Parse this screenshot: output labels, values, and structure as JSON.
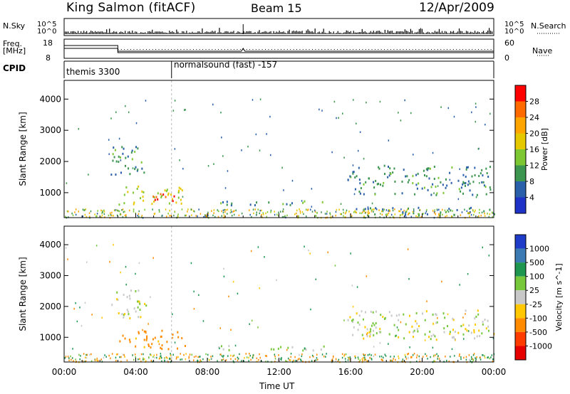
{
  "header": {
    "station": "King Salmon (fitACF)",
    "beam": "Beam 15",
    "date": "12/Apr/2009"
  },
  "top_panels": {
    "nsky_label": "N.Sky",
    "nsky_ticks": [
      "10^5",
      "10^0"
    ],
    "nsearch_label": "N.Search",
    "nsearch_ticks": [
      "10^5",
      "10^0"
    ],
    "freq_label_1": "Freq.",
    "freq_label_2": "[MHz]",
    "freq_ticks": [
      "18",
      "8"
    ],
    "nave_label": "Nave",
    "nave_ticks": [
      "60",
      "0"
    ],
    "cpid_label": "CPID",
    "cpid_segments": [
      {
        "name": "themis 3300",
        "start_hour": 0,
        "end_hour": 6
      },
      {
        "name": "normalsound (fast) -157",
        "start_hour": 6,
        "end_hour": 24
      }
    ]
  },
  "x_axis": {
    "label": "Time UT",
    "ticks": [
      "00:00",
      "04:00",
      "08:00",
      "12:00",
      "16:00",
      "20:00",
      "00:00"
    ]
  },
  "power_colorbar": {
    "title": "Power [dB]",
    "ticks": [
      "28",
      "24",
      "20",
      "16",
      "12",
      "8",
      "4"
    ],
    "colors": [
      "#ff0000",
      "#ff6a00",
      "#ffa500",
      "#e6c800",
      "#7dc832",
      "#3c9650",
      "#2a5faa",
      "#1e32c8"
    ]
  },
  "velocity_colorbar": {
    "title": "Velocity [m s^-1]",
    "ticks": [
      "1000",
      "500",
      "100",
      "25",
      "-25",
      "-100",
      "-500",
      "-1000"
    ],
    "colors": [
      "#1e3cc8",
      "#3c7ab4",
      "#1e9650",
      "#78c83c",
      "#c8c8c8",
      "#ffc800",
      "#ff8c00",
      "#ff3c00",
      "#e60000"
    ]
  },
  "chart_data": [
    {
      "type": "heatmap",
      "title": "Power",
      "xlabel": "Time UT",
      "ylabel": "Slant Range [km]",
      "xlim": [
        0,
        24
      ],
      "ylim": [
        200,
        4600
      ],
      "yticks": [
        "1000",
        "2000",
        "3000",
        "4000"
      ],
      "colorbar_label": "Power [dB]",
      "clim": [
        0,
        30
      ],
      "regions": [
        {
          "t_start": 3.0,
          "t_end": 6.8,
          "r_start": 650,
          "r_end": 1250,
          "value_dB": 14
        },
        {
          "t_start": 4.8,
          "t_end": 6.2,
          "r_start": 700,
          "r_end": 1100,
          "value_dB": 26
        },
        {
          "t_start": 2.6,
          "t_end": 4.6,
          "r_start": 1600,
          "r_end": 2600,
          "value_dB": 8
        },
        {
          "t_start": 8.6,
          "t_end": 14.8,
          "r_start": 600,
          "r_end": 760,
          "value_dB": 8
        },
        {
          "t_start": 15.8,
          "t_end": 24.0,
          "r_start": 950,
          "r_end": 1900,
          "value_dB": 7
        },
        {
          "t_start": 15.8,
          "t_end": 24.0,
          "r_start": 300,
          "r_end": 550,
          "value_dB": 6
        }
      ]
    },
    {
      "type": "heatmap",
      "title": "Velocity",
      "xlabel": "Time UT",
      "ylabel": "Slant Range [km]",
      "xlim": [
        0,
        24
      ],
      "ylim": [
        200,
        4600
      ],
      "yticks": [
        "1000",
        "2000",
        "3000",
        "4000"
      ],
      "colorbar_label": "Velocity [m s^-1]",
      "clim": [
        -1000,
        1000
      ],
      "regions": [
        {
          "t_start": 3.0,
          "t_end": 6.8,
          "r_start": 650,
          "r_end": 1250,
          "value_ms": -150
        },
        {
          "t_start": 2.6,
          "t_end": 4.6,
          "r_start": 1600,
          "r_end": 2600,
          "value_ms": 0
        },
        {
          "t_start": 8.6,
          "t_end": 14.8,
          "r_start": 600,
          "r_end": 760,
          "value_ms": 50
        },
        {
          "t_start": 15.8,
          "t_end": 24.0,
          "r_start": 950,
          "r_end": 1900,
          "value_ms": 0
        }
      ]
    }
  ]
}
